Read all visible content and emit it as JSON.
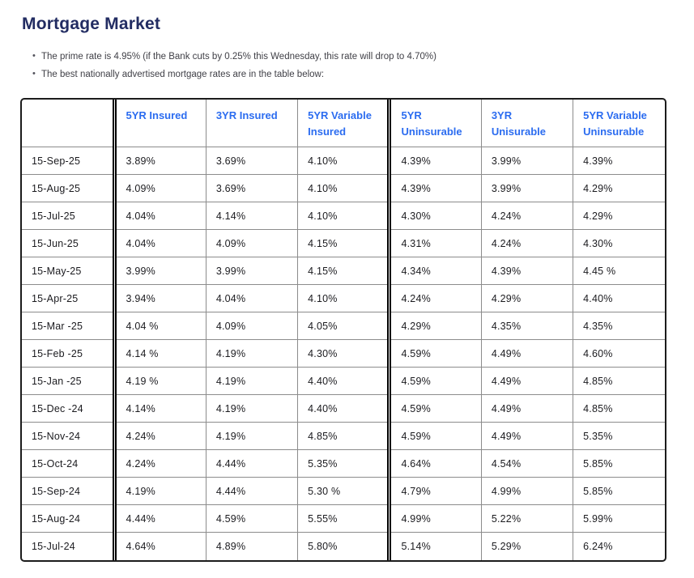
{
  "page": {
    "title": "Mortgage Market",
    "bullets": [
      "The prime rate is 4.95% (if the Bank cuts by 0.25% this Wednesday, this rate will drop to 4.70%)",
      "The best nationally advertised mortgage rates are in the table below:"
    ]
  },
  "colors": {
    "title_navy": "#222c62",
    "header_blue": "#2b6cf0",
    "grid_gray": "#8c8c8c",
    "outer_border": "#1c1c1c",
    "cell_text": "#1b1b1f",
    "bullet_text": "#3f3f46"
  },
  "table": {
    "columns": [
      "",
      "5YR Insured",
      "3YR Insured",
      "5YR Variable Insured",
      "5YR Uninsurable",
      "3YR Unisurable",
      "5YR Variable Uninsurable"
    ],
    "rows": [
      {
        "date": "15-Sep-25",
        "values": [
          "3.89%",
          "3.69%",
          "4.10%",
          "4.39%",
          "3.99%",
          "4.39%"
        ]
      },
      {
        "date": "15-Aug-25",
        "values": [
          "4.09%",
          "3.69%",
          "4.10%",
          "4.39%",
          "3.99%",
          "4.29%"
        ]
      },
      {
        "date": "15-Jul-25",
        "values": [
          "4.04%",
          "4.14%",
          "4.10%",
          "4.30%",
          "4.24%",
          "4.29%"
        ]
      },
      {
        "date": "15-Jun-25",
        "values": [
          "4.04%",
          "4.09%",
          "4.15%",
          "4.31%",
          "4.24%",
          "4.30%"
        ]
      },
      {
        "date": "15-May-25",
        "values": [
          "3.99%",
          "3.99%",
          "4.15%",
          "4.34%",
          "4.39%",
          "4.45 %"
        ]
      },
      {
        "date": "15-Apr-25",
        "values": [
          "3.94%",
          "4.04%",
          "4.10%",
          "4.24%",
          "4.29%",
          "4.40%"
        ]
      },
      {
        "date": "15-Mar -25",
        "values": [
          "4.04 %",
          "4.09%",
          "4.05%",
          "4.29%",
          "4.35%",
          "4.35%"
        ]
      },
      {
        "date": "15-Feb -25",
        "values": [
          "4.14 %",
          "4.19%",
          "4.30%",
          "4.59%",
          "4.49%",
          "4.60%"
        ]
      },
      {
        "date": "15-Jan -25",
        "values": [
          "4.19 %",
          "4.19%",
          "4.40%",
          "4.59%",
          "4.49%",
          "4.85%"
        ]
      },
      {
        "date": "15-Dec -24",
        "values": [
          "4.14%",
          "4.19%",
          "4.40%",
          "4.59%",
          "4.49%",
          "4.85%"
        ]
      },
      {
        "date": "15-Nov-24",
        "values": [
          "4.24%",
          "4.19%",
          "4.85%",
          "4.59%",
          "4.49%",
          "5.35%"
        ]
      },
      {
        "date": "15-Oct-24",
        "values": [
          "4.24%",
          "4.44%",
          "5.35%",
          "4.64%",
          "4.54%",
          "5.85%"
        ]
      },
      {
        "date": "15-Sep-24",
        "values": [
          "4.19%",
          "4.44%",
          "5.30 %",
          "4.79%",
          "4.99%",
          "5.85%"
        ]
      },
      {
        "date": "15-Aug-24",
        "values": [
          "4.44%",
          "4.59%",
          "5.55%",
          "4.99%",
          "5.22%",
          "5.99%"
        ]
      },
      {
        "date": "15-Jul-24",
        "values": [
          "4.64%",
          "4.89%",
          "5.80%",
          "5.14%",
          "5.29%",
          "6.24%"
        ]
      }
    ]
  }
}
